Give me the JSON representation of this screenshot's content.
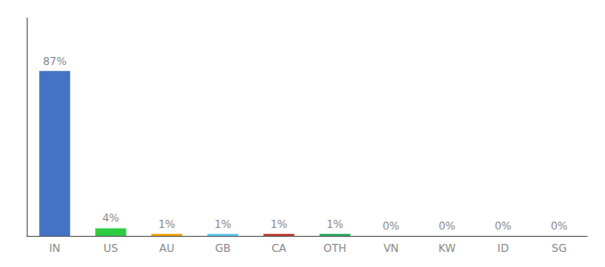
{
  "chart_data": {
    "type": "bar",
    "categories": [
      "IN",
      "US",
      "AU",
      "GB",
      "CA",
      "OTH",
      "VN",
      "KW",
      "ID",
      "SG"
    ],
    "values": [
      87,
      4,
      1,
      1,
      1,
      1,
      0,
      0,
      0,
      0
    ],
    "value_labels": [
      "87%",
      "4%",
      "1%",
      "1%",
      "1%",
      "1%",
      "0%",
      "0%",
      "0%",
      "0%"
    ],
    "colors": [
      "#4472c4",
      "#2ecc40",
      "#f0a500",
      "#5bc8f5",
      "#c0392b",
      "#27ae60",
      "#4472c4",
      "#4472c4",
      "#4472c4",
      "#4472c4"
    ],
    "ylim": [
      0,
      115
    ],
    "data_labels": true,
    "tick_labels": "x",
    "grid": false
  }
}
